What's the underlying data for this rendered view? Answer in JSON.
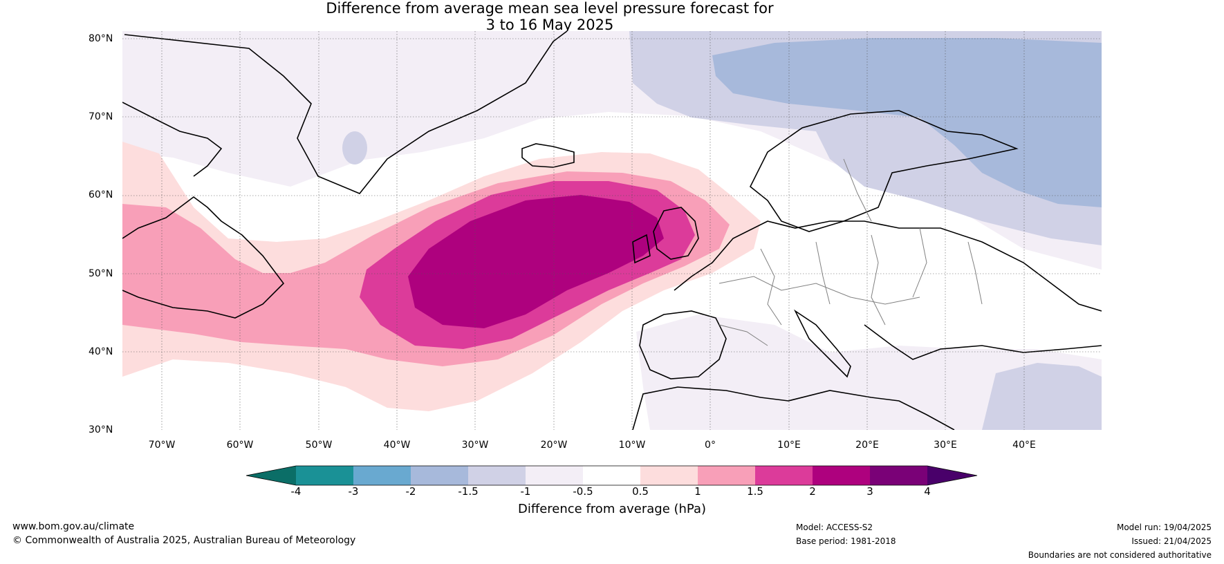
{
  "title_line1": "Difference from average mean sea level pressure forecast for",
  "title_line2": "3 to 16 May 2025",
  "lat_labels": [
    "80°N",
    "70°N",
    "60°N",
    "50°N",
    "40°N",
    "30°N"
  ],
  "lon_labels": [
    "70°W",
    "60°W",
    "50°W",
    "40°W",
    "30°W",
    "20°W",
    "10°W",
    "0°",
    "10°E",
    "20°E",
    "30°E",
    "40°E"
  ],
  "colorbar": {
    "title": "Difference from average (hPa)",
    "ticks": [
      "-4",
      "-3",
      "-2",
      "-1.5",
      "-1",
      "-0.5",
      "0.5",
      "1",
      "1.5",
      "2",
      "3",
      "4"
    ],
    "colors": [
      "#0b6e67",
      "#1a9196",
      "#69a9d0",
      "#a7b9db",
      "#d0d1e6",
      "#f3eef6",
      "#ffffff",
      "#fddddd",
      "#f89fb8",
      "#dc3b9a",
      "#ae017e",
      "#7a0177",
      "#49006a"
    ]
  },
  "footer": {
    "website": "www.bom.gov.au/climate",
    "copyright": "© Commonwealth of Australia 2025, Australian Bureau of Meteorology",
    "model": "Model: ACCESS-S2",
    "base_period": "Base period: 1981-2018",
    "model_run": "Model run: 19/04/2025",
    "issued": "Issued: 21/04/2025",
    "disclaimer": "Boundaries are not considered authoritative"
  }
}
